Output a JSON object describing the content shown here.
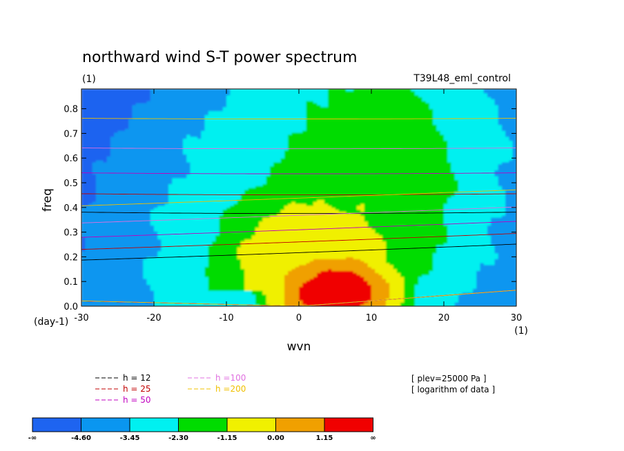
{
  "chart_data": {
    "type": "heatmap",
    "title": "northward wind S-T power spectrum",
    "subtitle_left": "(1)",
    "subtitle_right": "T39L48_eml_control",
    "xlabel": "wvn",
    "ylabel": "freq",
    "x_unit_label": "(1)",
    "y_unit_label": "(day-1)",
    "xlim": [
      -30,
      30
    ],
    "ylim": [
      0,
      0.88
    ],
    "x_ticks": [
      -30,
      -20,
      -10,
      0,
      10,
      20,
      30
    ],
    "x_tick_labels": [
      "-30",
      "-20",
      "-10",
      "0",
      "10",
      "20",
      "30"
    ],
    "y_ticks": [
      0.0,
      0.1,
      0.2,
      0.3,
      0.4,
      0.5,
      0.6,
      0.7,
      0.8
    ],
    "y_tick_labels": [
      "0.0",
      "0.1",
      "0.2",
      "0.3",
      "0.4",
      "0.5",
      "0.6",
      "0.7",
      "0.8"
    ],
    "contour_levels": [
      -4.6,
      -3.45,
      -2.3,
      -1.15,
      0.0,
      1.15
    ],
    "colorbar_labels": [
      "-∞",
      "-4.60",
      "-3.45",
      "-2.30",
      "-1.15",
      "0.00",
      "1.15",
      "∞"
    ],
    "colors": [
      "#1e64f0",
      "#0a96f0",
      "#00f0f0",
      "#00dc00",
      "#f0f000",
      "#f0a000",
      "#f00000"
    ],
    "field_shape": "log power, maximum near wvn 5, freq 0.05 (> 1.15); bands expand toward positive wvn and higher freq",
    "dispersion_curves": [
      {
        "name": "h = 12",
        "depth": 12,
        "color": "#000000"
      },
      {
        "name": "h = 25",
        "depth": 25,
        "color": "#c00000"
      },
      {
        "name": "h = 50",
        "depth": 50,
        "color": "#c000c0"
      },
      {
        "name": "h =100",
        "depth": 100,
        "color": "#e070e0"
      },
      {
        "name": "h =200",
        "depth": 200,
        "color": "#f0c000"
      }
    ],
    "annotations": [
      "[ plev=25000 Pa ]",
      "[ logarithm of data ]"
    ]
  }
}
